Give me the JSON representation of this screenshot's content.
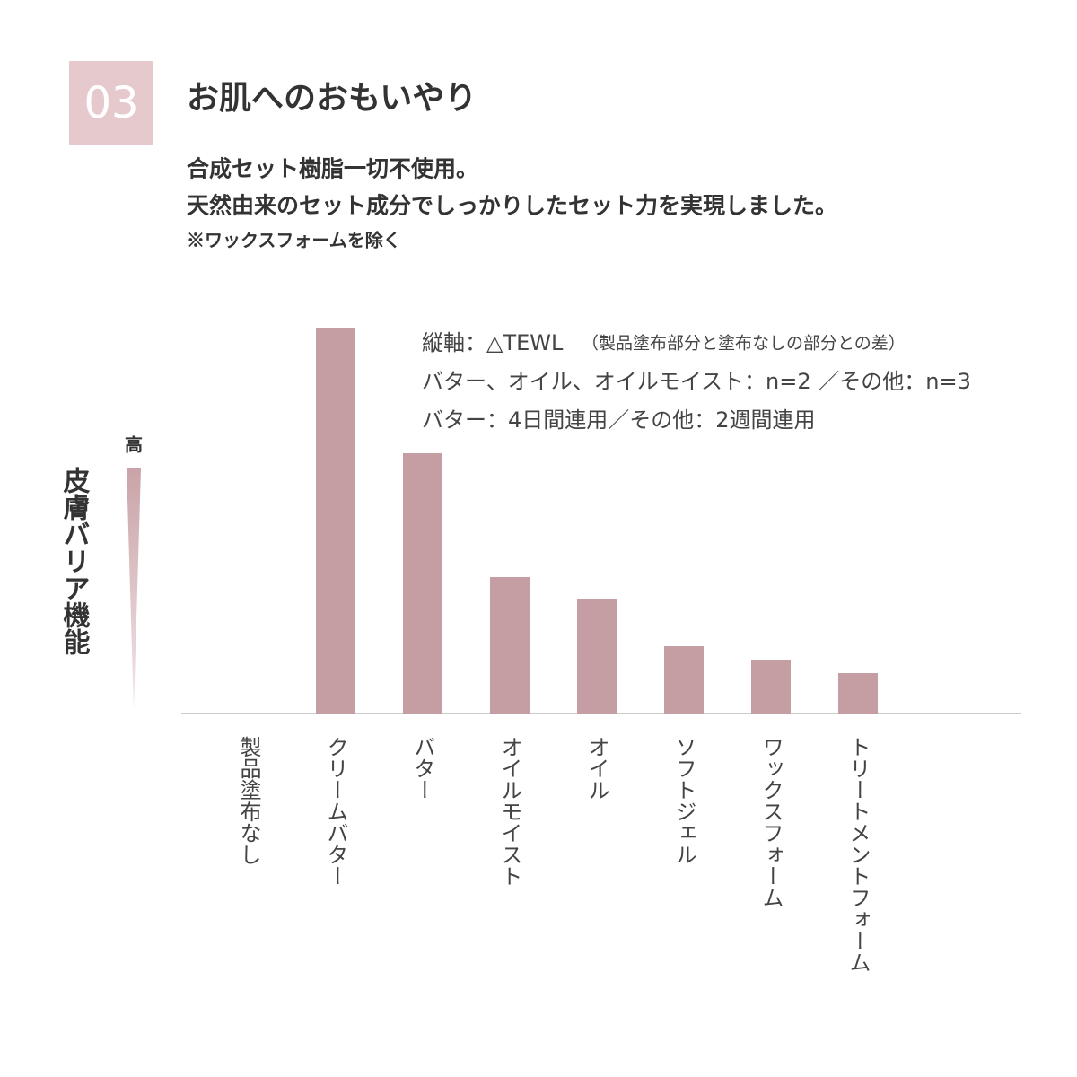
{
  "badge": "03",
  "heading": "お肌へのおもいやり",
  "description": [
    "合成セット樹脂一切不使用。",
    "天然由来のセット成分でしっかりしたセット力を実現しました。"
  ],
  "note": "※ワックスフォームを除く",
  "chart_data": {
    "type": "bar",
    "y_label": "皮膚バリア機能",
    "y_high_label": "高",
    "annotations": [
      "縦軸：△TEWL",
      "（製品塗布部分と塗布なしの部分との差）",
      "バター、オイル、オイルモイスト：n=2 ／その他：n=3",
      "バター：4日間連用／その他：2週間連用"
    ],
    "categories": [
      "製品塗布なし",
      "クリームバター",
      "バター",
      "オイルモイスト",
      "オイル",
      "ソフトジェル",
      "ワックスフォーム",
      "トリートメントフォーム"
    ],
    "values": [
      0,
      430,
      290,
      152,
      128,
      75,
      60,
      45
    ],
    "color": "#c49ea2",
    "ylim": [
      0,
      430
    ]
  }
}
